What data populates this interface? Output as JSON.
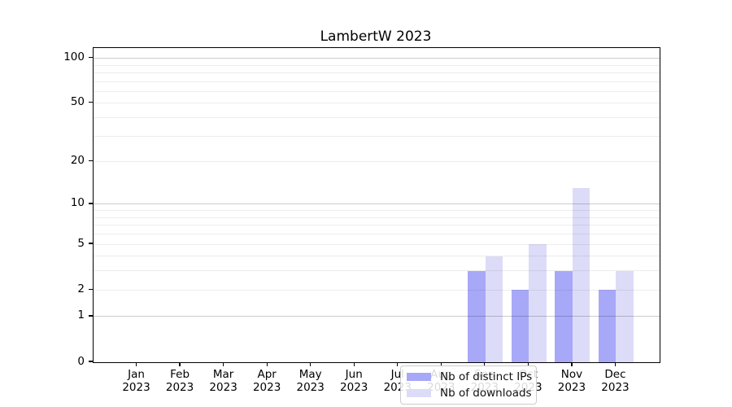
{
  "chart_data": {
    "type": "bar",
    "title": "LambertW 2023",
    "categories": [
      "Jan",
      "Feb",
      "Mar",
      "Apr",
      "May",
      "Jun",
      "Jul",
      "Aug",
      "Sep",
      "Oct",
      "Nov",
      "Dec"
    ],
    "x_tick_second_line": "2023",
    "series": [
      {
        "name": "Nb of distinct IPs",
        "color": "#a8a8f8",
        "values": [
          0,
          0,
          0,
          0,
          0,
          0,
          0,
          0,
          3,
          2,
          3,
          2
        ]
      },
      {
        "name": "Nb of downloads",
        "color": "#dcdcf8",
        "values": [
          0,
          0,
          0,
          0,
          0,
          0,
          0,
          0,
          4,
          5,
          13,
          3
        ]
      }
    ],
    "yscale": "log1p",
    "ylim": [
      0,
      117
    ],
    "ytick_values": [
      0,
      1,
      2,
      5,
      10,
      20,
      50,
      100
    ],
    "ytick_labels": [
      "0",
      "1",
      "2",
      "5",
      "10",
      "20",
      "50",
      "100"
    ],
    "grid_major_values": [
      1,
      10,
      100
    ],
    "grid_minor_values": [
      2,
      3,
      4,
      5,
      6,
      7,
      8,
      9,
      20,
      30,
      40,
      50,
      60,
      70,
      80,
      90
    ],
    "grid": true,
    "legend_position": "lower center"
  }
}
